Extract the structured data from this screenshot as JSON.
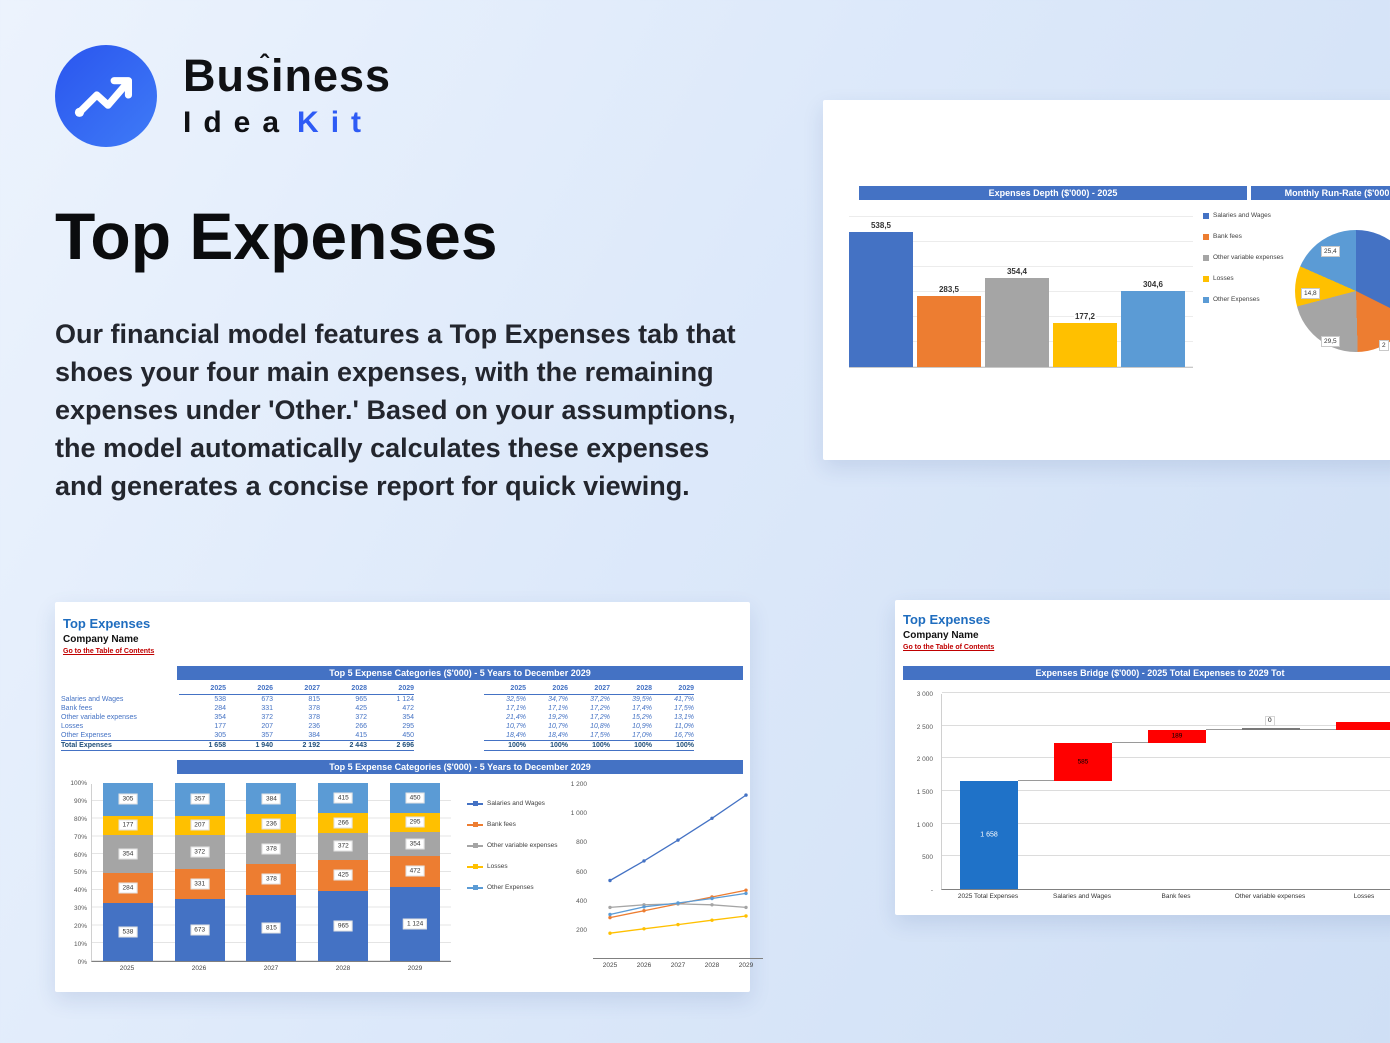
{
  "brand": {
    "word1": "Business",
    "word2": "Idea",
    "word3": "Kit"
  },
  "hero": {
    "title": "Top Expenses",
    "description": "Our financial model features a Top Expenses tab that shoes your four main expenses, with the remaining expenses under 'Other.' Based on your assumptions, the model automatically calculates these expenses and generates a concise report for quick viewing."
  },
  "colors": {
    "accent_blue": "#2e5bf5",
    "band_blue": "#1d56e2",
    "excel_header": "#4472c4",
    "series_colors": [
      "#4472c4",
      "#ed7d31",
      "#a5a5a5",
      "#ffc000",
      "#5b9bd5"
    ],
    "bridge_total": "#1f72c8",
    "bridge_increase": "#ff0000",
    "link_red": "#c00000"
  },
  "legend": [
    "Salaries and Wages",
    "Bank fees",
    "Other variable expenses",
    "Losses",
    "Other Expenses"
  ],
  "depth_card": {
    "left_header": "Expenses Depth ($'000) - 2025",
    "right_header": "Monthly Run-Rate ($'000"
  },
  "sheet": {
    "title": "Top Expenses",
    "company": "Company Name",
    "toc_link": "Go to the Table of Contents",
    "table_header": "Top 5 Expense Categories ($'000) - 5 Years to December 2029",
    "chart_header": "Top 5 Expense Categories ($'000) - 5 Years to December 2029",
    "years": [
      "2025",
      "2026",
      "2027",
      "2028",
      "2029"
    ],
    "rows": [
      {
        "label": "Salaries and Wages",
        "values": [
          "538",
          "673",
          "815",
          "965",
          "1 124"
        ],
        "pcts": [
          "32,5%",
          "34,7%",
          "37,2%",
          "39,5%",
          "41,7%"
        ]
      },
      {
        "label": "Bank fees",
        "values": [
          "284",
          "331",
          "378",
          "425",
          "472"
        ],
        "pcts": [
          "17,1%",
          "17,1%",
          "17,2%",
          "17,4%",
          "17,5%"
        ]
      },
      {
        "label": "Other variable expenses",
        "values": [
          "354",
          "372",
          "378",
          "372",
          "354"
        ],
        "pcts": [
          "21,4%",
          "19,2%",
          "17,2%",
          "15,2%",
          "13,1%"
        ]
      },
      {
        "label": "Losses",
        "values": [
          "177",
          "207",
          "236",
          "266",
          "295"
        ],
        "pcts": [
          "10,7%",
          "10,7%",
          "10,8%",
          "10,9%",
          "11,0%"
        ]
      },
      {
        "label": "Other Expenses",
        "values": [
          "305",
          "357",
          "384",
          "415",
          "450"
        ],
        "pcts": [
          "18,4%",
          "18,4%",
          "17,5%",
          "17,0%",
          "16,7%"
        ]
      }
    ],
    "total_row": {
      "label": "Total Expenses",
      "values": [
        "1 658",
        "1 940",
        "2 192",
        "2 443",
        "2 696"
      ],
      "pcts": [
        "100%",
        "100%",
        "100%",
        "100%",
        "100%"
      ]
    }
  },
  "bridge_sheet": {
    "title": "Top Expenses",
    "company": "Company Name",
    "toc_link": "Go to the Table of Contents",
    "header": "Expenses Bridge ($'000) - 2025 Total Expenses to 2029 Tot"
  },
  "chart_data": [
    {
      "type": "bar",
      "title": "Expenses Depth ($'000) - 2025",
      "categories": [
        "Salaries and Wages",
        "Bank fees",
        "Other variable expenses",
        "Losses",
        "Other Expenses"
      ],
      "values": [
        538.5,
        283.5,
        354.4,
        177.2,
        304.6
      ],
      "labels": [
        "538,5",
        "283,5",
        "354,4",
        "177,2",
        "304,6"
      ],
      "ylim": [
        0,
        600
      ],
      "legend_position": "right",
      "grid": true
    },
    {
      "type": "pie",
      "title": "Monthly Run-Rate ($'000",
      "categories": [
        "Salaries and Wages",
        "Bank fees",
        "Other variable expenses",
        "Losses",
        "Other Expenses"
      ],
      "values": [
        44.8,
        23.7,
        29.5,
        14.8,
        25.4
      ],
      "visible_labels": [
        "25,4",
        "14,8",
        "29,5",
        "2"
      ]
    },
    {
      "type": "bar",
      "subtype": "stacked-100pct",
      "title": "Top 5 Expense Categories ($'000) - 5 Years to December 2029",
      "categories": [
        "2025",
        "2026",
        "2027",
        "2028",
        "2029"
      ],
      "series": [
        {
          "name": "Salaries and Wages",
          "values": [
            538,
            673,
            815,
            965,
            1124
          ],
          "labels": [
            "538",
            "673",
            "815",
            "965",
            "1 124"
          ]
        },
        {
          "name": "Bank fees",
          "values": [
            284,
            331,
            378,
            425,
            472
          ],
          "labels": [
            "284",
            "331",
            "378",
            "425",
            "472"
          ]
        },
        {
          "name": "Other variable expenses",
          "values": [
            354,
            372,
            378,
            372,
            354
          ],
          "labels": [
            "354",
            "372",
            "378",
            "372",
            "354"
          ]
        },
        {
          "name": "Losses",
          "values": [
            177,
            207,
            236,
            266,
            295
          ],
          "labels": [
            "177",
            "207",
            "236",
            "266",
            "295"
          ]
        },
        {
          "name": "Other Expenses",
          "values": [
            305,
            357,
            384,
            415,
            450
          ],
          "labels": [
            "305",
            "357",
            "384",
            "415",
            "450"
          ]
        }
      ],
      "y_ticks": [
        "100%",
        "90%",
        "80%",
        "70%",
        "60%",
        "50%",
        "40%",
        "30%",
        "20%",
        "10%",
        "0%"
      ],
      "grid": true
    },
    {
      "type": "line",
      "title": "Top 5 Expense Categories ($'000) - 5 Years to December 2029",
      "categories": [
        "2025",
        "2026",
        "2027",
        "2028",
        "2029"
      ],
      "series": [
        {
          "name": "Salaries and Wages",
          "values": [
            538,
            673,
            815,
            965,
            1124
          ]
        },
        {
          "name": "Bank fees",
          "values": [
            284,
            331,
            378,
            425,
            472
          ]
        },
        {
          "name": "Other variable expenses",
          "values": [
            354,
            372,
            378,
            372,
            354
          ]
        },
        {
          "name": "Losses",
          "values": [
            177,
            207,
            236,
            266,
            295
          ]
        },
        {
          "name": "Other Expenses",
          "values": [
            305,
            357,
            384,
            415,
            450
          ]
        }
      ],
      "y_ticks": [
        "1 200",
        "1 000",
        "800",
        "600",
        "400",
        "200"
      ],
      "ylim": [
        0,
        1200
      ]
    },
    {
      "type": "waterfall",
      "title": "Expenses Bridge ($'000) - 2025 Total Expenses to 2029 Tot",
      "categories": [
        "2025 Total Expenses",
        "Salaries and Wages",
        "Bank fees",
        "Other variable expenses",
        "Losses"
      ],
      "segments": [
        {
          "label": "1 658",
          "from": 0,
          "to": 1658,
          "kind": "total"
        },
        {
          "label": "585",
          "from": 1658,
          "to": 2243,
          "kind": "increase"
        },
        {
          "label": "189",
          "from": 2243,
          "to": 2432,
          "kind": "increase"
        },
        {
          "label": "0",
          "from": 2432,
          "to": 2432,
          "kind": "zero"
        },
        {
          "label": "",
          "from": 2432,
          "to": 2550,
          "kind": "increase"
        }
      ],
      "y_ticks": [
        "3 000",
        "2 500",
        "2 000",
        "1 500",
        "1 000",
        "500",
        "-"
      ],
      "ylim": [
        0,
        3000
      ],
      "grid": true
    }
  ]
}
